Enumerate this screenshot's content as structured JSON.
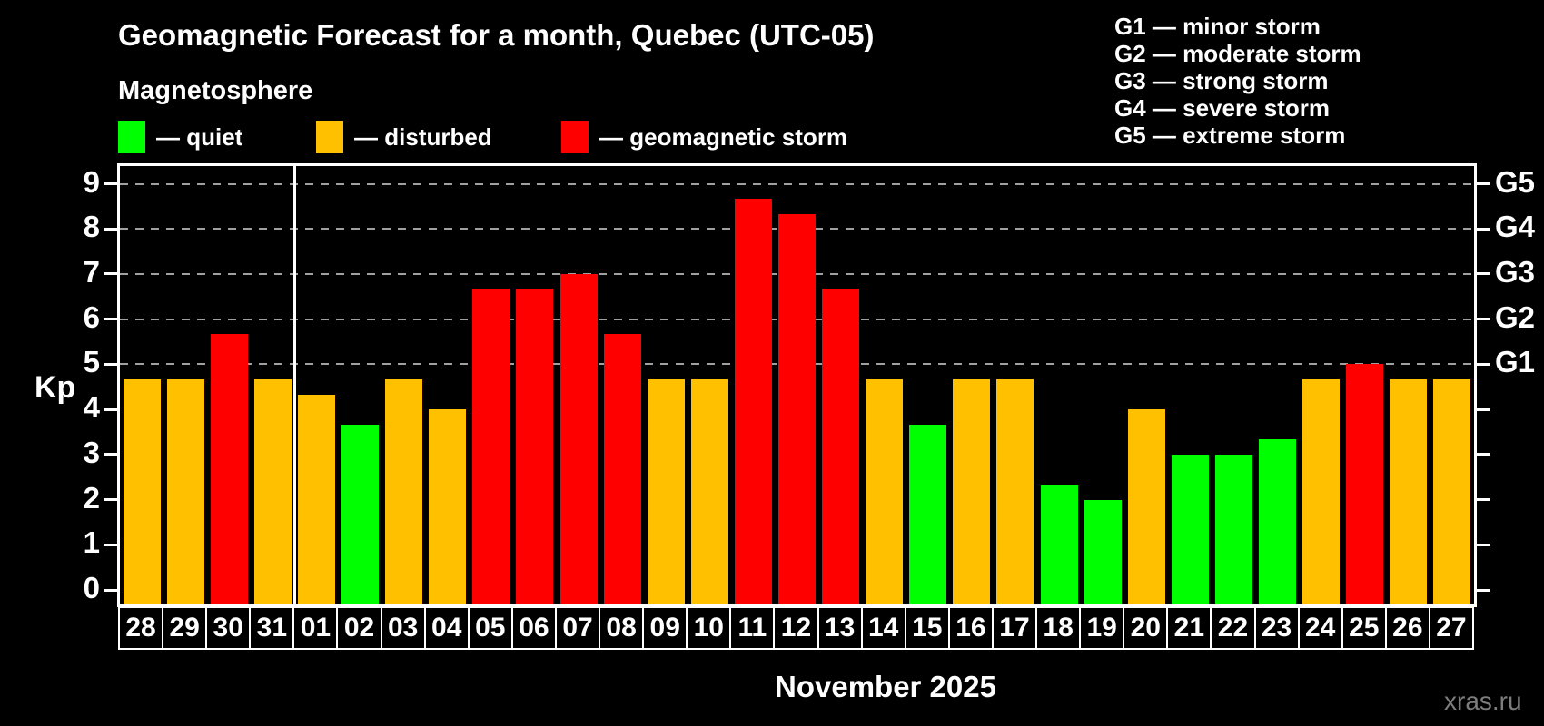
{
  "header": {
    "title": "Geomagnetic Forecast for a month, Quebec (UTC-05)",
    "subtitle": "Magnetosphere"
  },
  "legend": {
    "items": [
      {
        "status": "quiet",
        "label": "— quiet",
        "color": "#00ff00"
      },
      {
        "status": "disturbed",
        "label": "— disturbed",
        "color": "#ffc000"
      },
      {
        "status": "storm",
        "label": "— geomagnetic storm",
        "color": "#ff0000"
      }
    ]
  },
  "g_legend": {
    "items": [
      "G1 — minor storm",
      "G2 — moderate storm",
      "G3 — strong storm",
      "G4 — severe storm",
      "G5 — extreme storm"
    ]
  },
  "colors": {
    "quiet": "#00ff00",
    "disturbed": "#ffc000",
    "storm": "#ff0000",
    "background": "#000000",
    "grid": "#a0a0a0",
    "axis": "#ffffff",
    "watermark": "#7d7d7d"
  },
  "chart_data": {
    "type": "bar",
    "title": "Geomagnetic Forecast for a month, Quebec (UTC-05)",
    "ylabel": "Kp",
    "xlabel": "November 2025",
    "ylim": [
      0,
      9
    ],
    "yticks": [
      0,
      1,
      2,
      3,
      4,
      5,
      6,
      7,
      8,
      9
    ],
    "gridlines_at": [
      5,
      6,
      7,
      8,
      9
    ],
    "legend_position": "top",
    "right_axis": [
      {
        "label": "G1",
        "value": 5
      },
      {
        "label": "G2",
        "value": 6
      },
      {
        "label": "G3",
        "value": 7
      },
      {
        "label": "G4",
        "value": 8
      },
      {
        "label": "G5",
        "value": 9
      }
    ],
    "month_separator_after_index": 3,
    "categories": [
      "28",
      "29",
      "30",
      "31",
      "01",
      "02",
      "03",
      "04",
      "05",
      "06",
      "07",
      "08",
      "09",
      "10",
      "11",
      "12",
      "13",
      "14",
      "15",
      "16",
      "17",
      "18",
      "19",
      "20",
      "21",
      "22",
      "23",
      "24",
      "25",
      "26",
      "27"
    ],
    "values": [
      4.67,
      4.67,
      5.67,
      4.67,
      4.33,
      3.67,
      4.67,
      4,
      6.67,
      6.67,
      7,
      5.67,
      4.67,
      4.67,
      8.67,
      8.33,
      6.67,
      4.67,
      3.67,
      4.67,
      4.67,
      2.33,
      2,
      4,
      3,
      3,
      3.33,
      4.67,
      5,
      4.67,
      4.67
    ],
    "statuses": [
      "disturbed",
      "disturbed",
      "storm",
      "disturbed",
      "disturbed",
      "quiet",
      "disturbed",
      "disturbed",
      "storm",
      "storm",
      "storm",
      "storm",
      "disturbed",
      "disturbed",
      "storm",
      "storm",
      "storm",
      "disturbed",
      "quiet",
      "disturbed",
      "disturbed",
      "quiet",
      "quiet",
      "disturbed",
      "quiet",
      "quiet",
      "quiet",
      "disturbed",
      "storm",
      "disturbed",
      "disturbed"
    ]
  },
  "footer": {
    "x_title": "November 2025",
    "watermark": "xras.ru"
  }
}
